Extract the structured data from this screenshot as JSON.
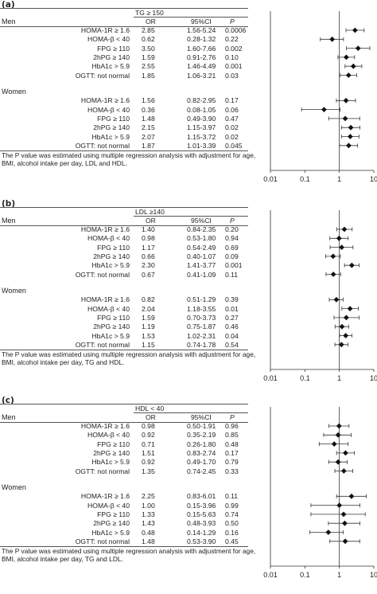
{
  "chart_data": [
    {
      "panel": "(a)",
      "type": "table",
      "header": "TG ≥ 150",
      "columns": [
        "OR",
        "95%CI",
        "P"
      ],
      "groups": [
        {
          "name": "Men",
          "rows": [
            {
              "label": "HOMA-1R ≥ 1.6",
              "or": "2.85",
              "ci": "1.56-5.24",
              "p": "0.0006",
              "est": 2.85,
              "lo": 1.56,
              "hi": 5.24
            },
            {
              "label": "HOMA-β < 40",
              "or": "0.62",
              "ci": "0.28-1.32",
              "p": "0.22",
              "est": 0.62,
              "lo": 0.28,
              "hi": 1.32
            },
            {
              "label": "FPG ≥ 110",
              "or": "3.50",
              "ci": "1.60-7.66",
              "p": "0.002",
              "est": 3.5,
              "lo": 1.6,
              "hi": 7.66
            },
            {
              "label": "2hPG ≥ 140",
              "or": "1.59",
              "ci": "0.91-2.76",
              "p": "0.10",
              "est": 1.59,
              "lo": 0.91,
              "hi": 2.76
            },
            {
              "label": "HbA1c > 5.9",
              "or": "2.55",
              "ci": "1.46-4.49",
              "p": "0.001",
              "est": 2.55,
              "lo": 1.46,
              "hi": 4.49
            },
            {
              "label": "OGTT: not normal",
              "or": "1.85",
              "ci": "1.06-3.21",
              "p": "0.03",
              "est": 1.85,
              "lo": 1.06,
              "hi": 3.21
            }
          ]
        },
        {
          "name": "Women",
          "rows": [
            {
              "label": "HOMA-1R ≥ 1.6",
              "or": "1.56",
              "ci": "0.82-2.95",
              "p": "0.17",
              "est": 1.56,
              "lo": 0.82,
              "hi": 2.95
            },
            {
              "label": "HOMA-β < 40",
              "or": "0.36",
              "ci": "0.08-1.05",
              "p": "0.06",
              "est": 0.36,
              "lo": 0.08,
              "hi": 1.05
            },
            {
              "label": "FPG ≥ 110",
              "or": "1.48",
              "ci": "0.49-3.90",
              "p": "0.47",
              "est": 1.48,
              "lo": 0.49,
              "hi": 3.9
            },
            {
              "label": "2hPG ≥ 140",
              "or": "2.15",
              "ci": "1.15-3.97",
              "p": "0.02",
              "est": 2.15,
              "lo": 1.15,
              "hi": 3.97
            },
            {
              "label": "HbA1c > 5.9",
              "or": "2.07",
              "ci": "1.15-3.72",
              "p": "0.02",
              "est": 2.07,
              "lo": 1.15,
              "hi": 3.72
            },
            {
              "label": "OGTT: not normal",
              "or": "1.87",
              "ci": "1.01-3.39",
              "p": "0.045",
              "est": 1.87,
              "lo": 1.01,
              "hi": 3.39
            }
          ]
        }
      ],
      "note": "The P value was estimated using multiple regression analysis with adjustment for age, BMI, alcohol intake per day, LDL and HDL.",
      "x_scale": "log",
      "x_ticks": [
        "0.01",
        "0.1",
        "1",
        "10"
      ],
      "xlim": [
        0.01,
        10
      ]
    },
    {
      "panel": "(b)",
      "type": "table",
      "header": "LDL ≥140",
      "columns": [
        "OR",
        "95%CI",
        "P"
      ],
      "groups": [
        {
          "name": "Men",
          "rows": [
            {
              "label": "HOMA-1R ≥ 1.6",
              "or": "1.40",
              "ci": "0.84-2.35",
              "p": "0.20",
              "est": 1.4,
              "lo": 0.84,
              "hi": 2.35
            },
            {
              "label": "HOMA-β < 40",
              "or": "0.98",
              "ci": "0.53-1.80",
              "p": "0.94",
              "est": 0.98,
              "lo": 0.53,
              "hi": 1.8
            },
            {
              "label": "FPG ≥ 110",
              "or": "1.17",
              "ci": "0.54-2.49",
              "p": "0.69",
              "est": 1.17,
              "lo": 0.54,
              "hi": 2.49
            },
            {
              "label": "2hPG ≥ 140",
              "or": "0.66",
              "ci": "0.40-1.07",
              "p": "0.09",
              "est": 0.66,
              "lo": 0.4,
              "hi": 1.07
            },
            {
              "label": "HbA1c > 5.9",
              "or": "2.30",
              "ci": "1.41-3.77",
              "p": "0.001",
              "est": 2.3,
              "lo": 1.41,
              "hi": 3.77
            },
            {
              "label": "OGTT: not normal",
              "or": "0.67",
              "ci": "0.41-1.09",
              "p": "0.11",
              "est": 0.67,
              "lo": 0.41,
              "hi": 1.09
            }
          ]
        },
        {
          "name": "Women",
          "rows": [
            {
              "label": "HOMA-1R ≥ 1.6",
              "or": "0.82",
              "ci": "0.51-1.29",
              "p": "0.39",
              "est": 0.82,
              "lo": 0.51,
              "hi": 1.29
            },
            {
              "label": "HOMA-β < 40",
              "or": "2.04",
              "ci": "1.18-3.55",
              "p": "0.01",
              "est": 2.04,
              "lo": 1.18,
              "hi": 3.55
            },
            {
              "label": "FPG ≥ 110",
              "or": "1.59",
              "ci": "0.70-3.73",
              "p": "0.27",
              "est": 1.59,
              "lo": 0.7,
              "hi": 3.73
            },
            {
              "label": "2hPG ≥ 140",
              "or": "1.19",
              "ci": "0.75-1.87",
              "p": "0.46",
              "est": 1.19,
              "lo": 0.75,
              "hi": 1.87
            },
            {
              "label": "HbA1c > 5.9",
              "or": "1.53",
              "ci": "1.02-2.31",
              "p": "0.04",
              "est": 1.53,
              "lo": 1.02,
              "hi": 2.31
            },
            {
              "label": "OGTT: not normal",
              "or": "1.15",
              "ci": "0.74-1.78",
              "p": "0.54",
              "est": 1.15,
              "lo": 0.74,
              "hi": 1.78
            }
          ]
        }
      ],
      "note": "The P value was estimated using multiple regression analysis with adjustment for age, BMI, alcohol intake per day, TG and HDL.",
      "x_scale": "log",
      "x_ticks": [
        "0.01",
        "0.1",
        "1",
        "10"
      ],
      "xlim": [
        0.01,
        10
      ]
    },
    {
      "panel": "(c)",
      "type": "table",
      "header": "HDL < 40",
      "columns": [
        "OR",
        "95%CI",
        "P"
      ],
      "groups": [
        {
          "name": "Men",
          "rows": [
            {
              "label": "HOMA-1R ≥ 1.6",
              "or": "0.98",
              "ci": "0.50-1.91",
              "p": "0.96",
              "est": 0.98,
              "lo": 0.5,
              "hi": 1.91
            },
            {
              "label": "HOMA-β < 40",
              "or": "0.92",
              "ci": "0.35-2.19",
              "p": "0.85",
              "est": 0.92,
              "lo": 0.35,
              "hi": 2.19
            },
            {
              "label": "FPG ≥ 110",
              "or": "0.71",
              "ci": "0.26-1.80",
              "p": "0.48",
              "est": 0.71,
              "lo": 0.26,
              "hi": 1.8
            },
            {
              "label": "2hPG ≥ 140",
              "or": "1.51",
              "ci": "0.83-2.74",
              "p": "0.17",
              "est": 1.51,
              "lo": 0.83,
              "hi": 2.74
            },
            {
              "label": "HbA1c > 5.9",
              "or": "0.92",
              "ci": "0.49-1.70",
              "p": "0.79",
              "est": 0.92,
              "lo": 0.49,
              "hi": 1.7
            },
            {
              "label": "OGTT: not normal",
              "or": "1.35",
              "ci": "0.74-2.45",
              "p": "0.33",
              "est": 1.35,
              "lo": 0.74,
              "hi": 2.45
            }
          ]
        },
        {
          "name": "Women",
          "rows": [
            {
              "label": "HOMA-1R ≥ 1.6",
              "or": "2.25",
              "ci": "0.83-6.01",
              "p": "0.11",
              "est": 2.25,
              "lo": 0.83,
              "hi": 6.01
            },
            {
              "label": "HOMA-β < 40",
              "or": "1.00",
              "ci": "0.15-3.96",
              "p": "0.99",
              "est": 1.0,
              "lo": 0.15,
              "hi": 3.96
            },
            {
              "label": "FPG ≥ 110",
              "or": "1.33",
              "ci": "0.15-5.63",
              "p": "0.74",
              "est": 1.33,
              "lo": 0.15,
              "hi": 5.63
            },
            {
              "label": "2hPG ≥ 140",
              "or": "1.43",
              "ci": "0.48-3.93",
              "p": "0.50",
              "est": 1.43,
              "lo": 0.48,
              "hi": 3.93
            },
            {
              "label": "HbA1c > 5.9",
              "or": "0.48",
              "ci": "0.14-1.29",
              "p": "0.16",
              "est": 0.48,
              "lo": 0.14,
              "hi": 1.29
            },
            {
              "label": "OGTT: not normal",
              "or": "1.48",
              "ci": "0.53-3.90",
              "p": "0.45",
              "est": 1.48,
              "lo": 0.53,
              "hi": 3.9
            }
          ]
        }
      ],
      "note": "The P value was estimated using multiple regression analysis with adjustment for age, BMI, alcohol intake per day, TG and LDL.",
      "x_scale": "log",
      "x_ticks": [
        "0.01",
        "0.1",
        "1",
        "10"
      ],
      "xlim": [
        0.01,
        10
      ]
    }
  ]
}
